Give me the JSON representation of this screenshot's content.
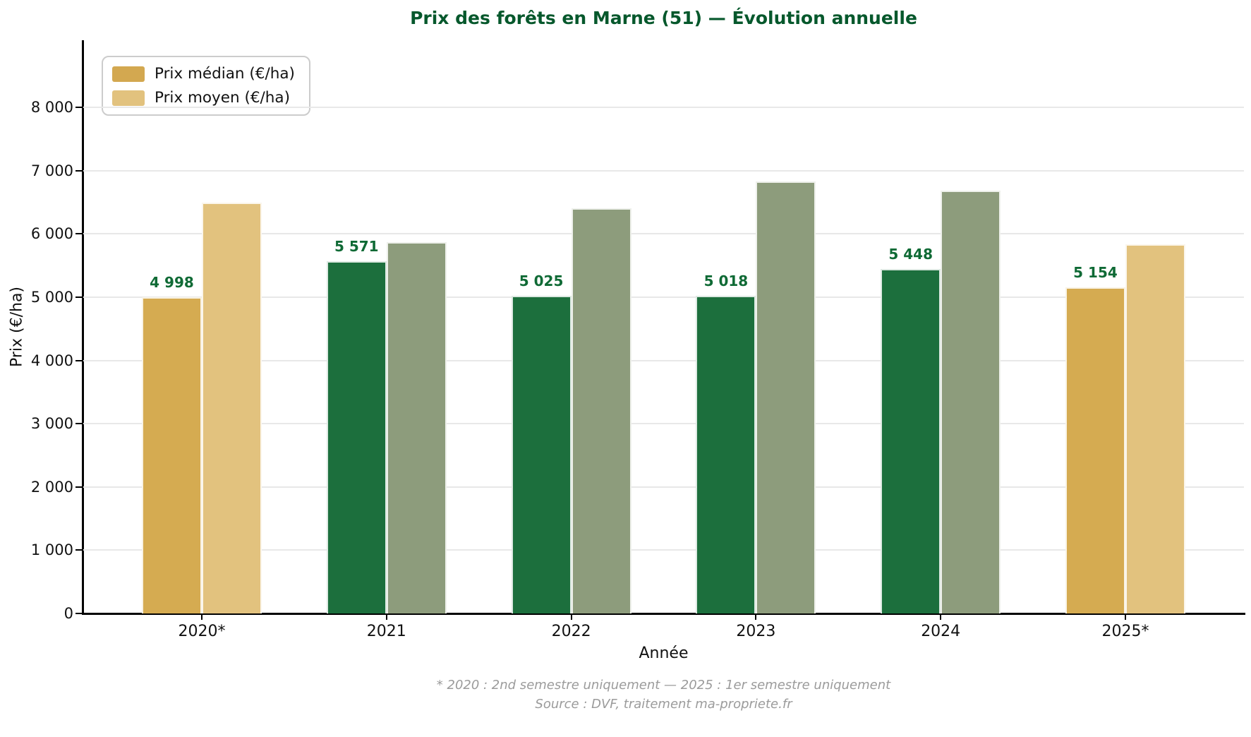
{
  "title": {
    "text": "Prix des forêts en Marne (51) — Évolution annuelle",
    "color": "#06582c"
  },
  "legend": {
    "items": [
      {
        "label": "Prix médian (€/ha)",
        "color": "#d3a850"
      },
      {
        "label": "Prix moyen (€/ha)",
        "color": "#e2c27e"
      }
    ]
  },
  "footnotes": {
    "line1": "* 2020 : 2nd semestre uniquement — 2025 : 1er semestre uniquement",
    "line2": "Source : DVF, traitement ma-propriete.fr"
  },
  "colors": {
    "median_full_year": "#1c6f3d",
    "median_partial_year": "#d5ab51",
    "mean_full_year": "#8d9c7c",
    "mean_partial_year": "#e2c27e",
    "value_label": "#0f6a35",
    "grid": "#e8e8e8",
    "axis": "#000000",
    "footnote": "#9b9b9b"
  },
  "chart_data": {
    "type": "bar",
    "title": "Prix des forêts en Marne (51) — Évolution annuelle",
    "xlabel": "Année",
    "ylabel": "Prix (€/ha)",
    "categories": [
      "2020*",
      "2021",
      "2022",
      "2023",
      "2024",
      "2025*"
    ],
    "series": [
      {
        "name": "Prix médian (€/ha)",
        "values": [
          4998,
          5571,
          5025,
          5018,
          5448,
          5154
        ],
        "value_labels": [
          "4 998",
          "5 571",
          "5 025",
          "5 018",
          "5 448",
          "5 154"
        ],
        "bar_colors": [
          "#d5ab51",
          "#1c6f3d",
          "#1c6f3d",
          "#1c6f3d",
          "#1c6f3d",
          "#d5ab51"
        ]
      },
      {
        "name": "Prix moyen (€/ha)",
        "values": [
          6490,
          5870,
          6410,
          6830,
          6680,
          5840
        ],
        "value_labels": [
          "",
          "",
          "",
          "",
          "",
          ""
        ],
        "bar_colors": [
          "#e2c27e",
          "#8d9c7c",
          "#8d9c7c",
          "#8d9c7c",
          "#8d9c7c",
          "#e2c27e"
        ]
      }
    ],
    "ylim": [
      0,
      9060
    ],
    "yticks": [
      0,
      1000,
      2000,
      3000,
      4000,
      5000,
      6000,
      7000,
      8000
    ],
    "ytick_labels": [
      "0",
      "1 000",
      "2 000",
      "3 000",
      "4 000",
      "5 000",
      "6 000",
      "7 000",
      "8 000"
    ],
    "grid": "horizontal",
    "legend_position": "upper-left",
    "bar_value_labels_on": "median-series-only"
  }
}
